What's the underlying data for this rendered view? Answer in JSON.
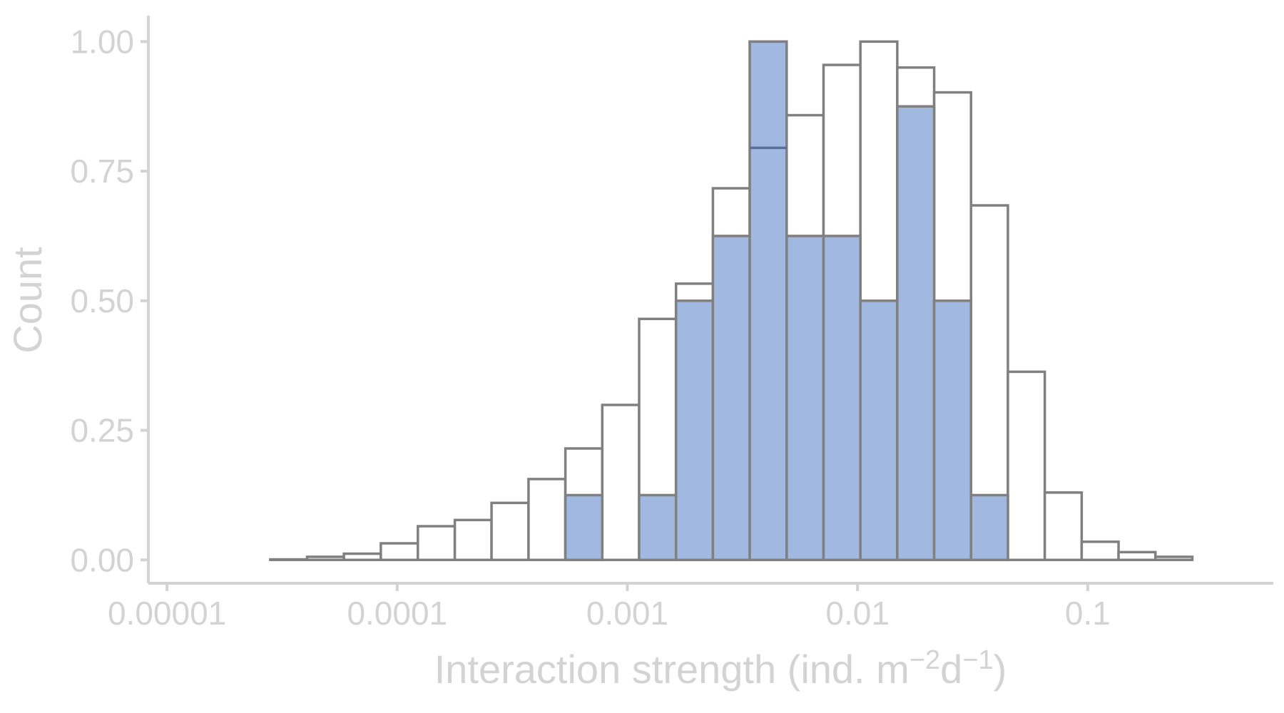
{
  "chart_data": {
    "type": "bar",
    "subtype": "overlaid histogram",
    "xlabel": "Interaction strength (ind. m",
    "xlabel_sup1": "−2",
    "xlabel_mid": "d",
    "xlabel_sup2": "−1",
    "xlabel_end": ")",
    "ylabel": "Count",
    "x_scale": "log10",
    "xlim": [
      8.3e-06,
      0.64
    ],
    "ylim": [
      -0.045,
      1.05
    ],
    "grid": false,
    "legend": "none",
    "x_ticks": [
      {
        "value": 1e-05,
        "label": "0.00001"
      },
      {
        "value": 0.0001,
        "label": "0.0001"
      },
      {
        "value": 0.001,
        "label": "0.001"
      },
      {
        "value": 0.01,
        "label": "0.01"
      },
      {
        "value": 0.1,
        "label": "0.1"
      }
    ],
    "y_ticks": [
      {
        "value": 0.0,
        "label": "0.00"
      },
      {
        "value": 0.25,
        "label": "0.25"
      },
      {
        "value": 0.5,
        "label": "0.50"
      },
      {
        "value": 0.75,
        "label": "0.75"
      },
      {
        "value": 1.0,
        "label": "1.00"
      }
    ],
    "bin_edges": [
      9.3e-06,
      1.34e-05,
      1.94e-05,
      2.81e-05,
      4.06e-05,
      5.87e-05,
      8.49e-05,
      0.000123,
      0.000178,
      0.000257,
      0.000372,
      0.000538,
      0.000778,
      0.001125,
      0.001627,
      0.002353,
      0.003402,
      0.00492,
      0.007115,
      0.01029,
      0.01488,
      0.02152,
      0.03112,
      0.045,
      0.06508,
      0.09412,
      0.1361,
      0.1968,
      0.2847,
      0.4117,
      0.5954
    ],
    "series": [
      {
        "role": "all",
        "values": [
          0,
          0,
          0,
          0.001,
          0.006,
          0.012,
          0.032,
          0.065,
          0.077,
          0.11,
          0.156,
          0.215,
          0.299,
          0.465,
          0.533,
          0.717,
          1.0,
          0.858,
          0.955,
          1.0,
          0.95,
          0.902,
          0.684,
          0.363,
          0.13,
          0.035,
          0.015,
          0.006,
          0,
          0
        ]
      },
      {
        "role": "subset",
        "values": [
          0,
          0,
          0,
          0,
          0,
          0,
          0,
          0,
          0,
          0,
          0,
          0.125,
          0,
          0.125,
          0.5,
          0.625,
          1.0,
          0.625,
          0.625,
          0.5,
          0.875,
          0.5,
          0.125,
          0,
          0,
          0,
          0,
          0,
          0,
          0
        ],
        "inner_lines": [
          {
            "bin": 16,
            "value": 0.795
          }
        ],
        "color": "#a1b8e0"
      }
    ],
    "colors": {
      "outline": "#808080",
      "axis": "#d3d3d3",
      "fill_all": "#ffffff",
      "fill_subset": "#a1b8e0"
    }
  }
}
